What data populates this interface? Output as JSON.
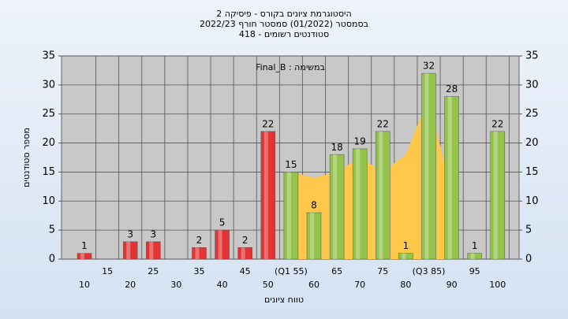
{
  "chart_data": {
    "type": "bar",
    "title": "היסטוגרמת ציונים בקורס - פיסיקה 2",
    "subtitle": "בסמסטר  (01/2022)  סמסטר חורף  2022/23",
    "subtitle2": "סטודנטים רשומים - 418",
    "annotation": "במשימה : Final_B",
    "y_label": "מספר סטודנטים",
    "x_label": "טווח ציונים",
    "categories": [
      "10",
      "15",
      "20",
      "25",
      "30",
      "35",
      "40",
      "45",
      "50",
      "(Q1 55)",
      "60",
      "65",
      "70",
      "75",
      "80",
      "(Q3 85)",
      "90",
      "95",
      "100"
    ],
    "values": [
      1,
      0,
      3,
      3,
      0,
      2,
      5,
      2,
      22,
      15,
      8,
      18,
      19,
      22,
      1,
      32,
      28,
      1,
      22
    ],
    "colors": [
      "#e23434",
      "#e23434",
      "#e23434",
      "#e23434",
      "#e23434",
      "#e23434",
      "#e23434",
      "#e23434",
      "#e23434",
      "#93c34a",
      "#93c34a",
      "#93c34a",
      "#93c34a",
      "#93c34a",
      "#93c34a",
      "#93c34a",
      "#93c34a",
      "#93c34a",
      "#93c34a"
    ],
    "area": {
      "color": "#ffc84a",
      "values": [
        null,
        null,
        null,
        null,
        null,
        null,
        null,
        null,
        null,
        15,
        14,
        15,
        17.5,
        15,
        18,
        28,
        11,
        null,
        null
      ]
    },
    "ylim": [
      0,
      35
    ],
    "yticks": [
      0,
      5,
      10,
      15,
      20,
      25,
      30,
      35
    ],
    "grid": true
  }
}
